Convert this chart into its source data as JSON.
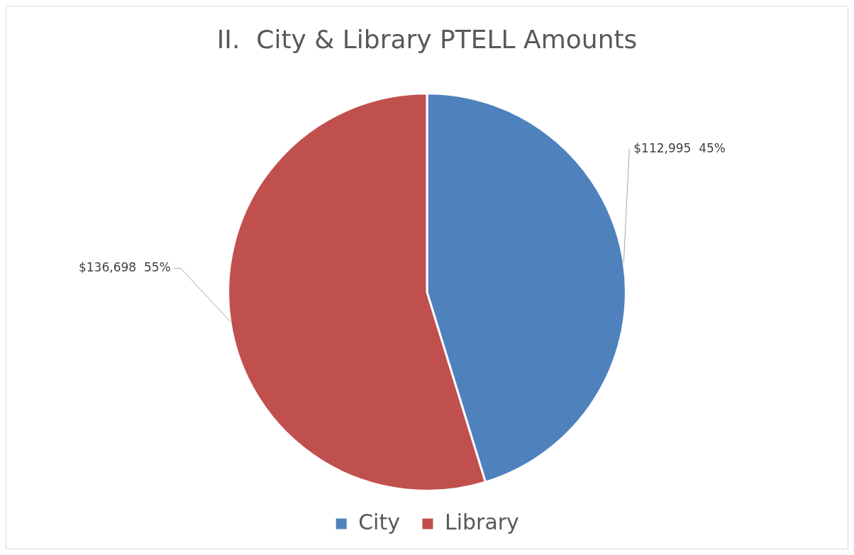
{
  "chart_data": {
    "type": "pie",
    "title": "II.  City & Library PTELL Amounts",
    "categories": [
      "City",
      "Library"
    ],
    "values": [
      112995,
      136698
    ],
    "colors": [
      "#4f81bd",
      "#c0504d"
    ],
    "value_labels": [
      "$112,995  45%",
      "$136,698  55%"
    ],
    "legend": "bottom"
  }
}
